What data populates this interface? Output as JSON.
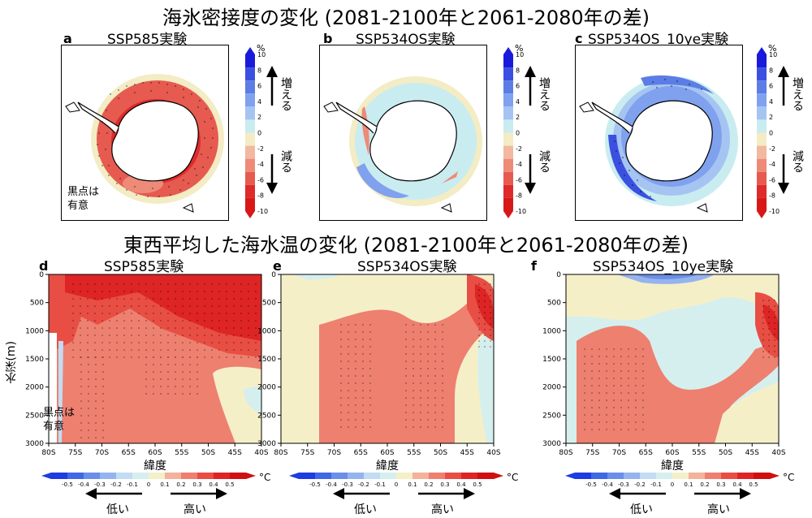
{
  "titles": {
    "top": "海氷密接度の変化 (2081-2100年と2061-2080年の差)",
    "bottom": "東西平均した海水温の変化 (2081-2100年と2061-2080年の差)"
  },
  "panels": {
    "a": {
      "label": "a",
      "title": "SSP585実験"
    },
    "b": {
      "label": "b",
      "title": "SSP534OS実験"
    },
    "c": {
      "label": "c",
      "title": "SSP534OS_10ye実験"
    },
    "d": {
      "label": "d",
      "title": "SSP585実験"
    },
    "e": {
      "label": "e",
      "title": "SSP534OS実験"
    },
    "f": {
      "label": "f",
      "title": "SSP534OS_10ye実験"
    }
  },
  "notes": {
    "significance_line1": "黒点は",
    "significance_line2": "有意"
  },
  "ice_colorbar": {
    "unit": "%",
    "ticks": [
      "10",
      "8",
      "6",
      "4",
      "2",
      "0",
      "-2",
      "-4",
      "-6",
      "-8",
      "-10"
    ],
    "up_label": "増える",
    "down_label": "減る",
    "colors": [
      "#1a1adc",
      "#3b50e0",
      "#5c7de6",
      "#7fa1ee",
      "#a5c4f2",
      "#c9ecf0",
      "#f3ecc4",
      "#f2b8a0",
      "#ee8a78",
      "#e65a50",
      "#de2a2a",
      "#d81818"
    ]
  },
  "temp_colorbar": {
    "unit": "°C",
    "ticks": [
      "-0.5",
      "-0.4",
      "-0.3",
      "-0.2",
      "-0.1",
      "0",
      "0.1",
      "0.2",
      "0.3",
      "0.4",
      "0.5"
    ],
    "low_label": "低い",
    "high_label": "高い",
    "colors": [
      "#1e3ce0",
      "#3f68e4",
      "#6a8fe8",
      "#95b4ee",
      "#c2dcf3",
      "#d5efee",
      "#f5efc8",
      "#f4b29a",
      "#ee8070",
      "#e84e44",
      "#de2424",
      "#d01010"
    ]
  },
  "depth_axis": {
    "label": "水深(m)",
    "ticks": [
      "0",
      "500",
      "1000",
      "1500",
      "2000",
      "2500",
      "3000"
    ]
  },
  "lat_axis": {
    "label": "緯度",
    "ticks": [
      "80S",
      "75S",
      "70S",
      "65S",
      "60S",
      "55S",
      "50S",
      "45S",
      "40S"
    ]
  },
  "chart_data": [
    {
      "type": "heatmap",
      "panel": "a",
      "title": "SSP585実験",
      "variable": "sea ice concentration change",
      "unit": "%",
      "clim": [
        -10,
        10
      ],
      "pattern": "decrease around entire Antarctic sea-ice edge, values -4 to -10, mostly significant"
    },
    {
      "type": "heatmap",
      "panel": "b",
      "title": "SSP534OS実験",
      "variable": "sea ice concentration change",
      "unit": "%",
      "clim": [
        -10,
        10
      ],
      "pattern": "weak increase 0 to 4 around Antarctica, local -2 to -6 near peninsula and Ross Sea"
    },
    {
      "type": "heatmap",
      "panel": "c",
      "title": "SSP534OS_10ye実験",
      "variable": "sea ice concentration change",
      "unit": "%",
      "clim": [
        -10,
        10
      ],
      "pattern": "increase 2 to 10 around Antarctica, strongest in Weddell Sea, significant"
    },
    {
      "type": "heatmap",
      "panel": "d",
      "title": "SSP585実験",
      "xlabel": "緯度",
      "ylabel": "水深(m)",
      "x_range": [
        "80S",
        "40S"
      ],
      "y_range": [
        0,
        3000
      ],
      "unit": "°C",
      "clim": [
        -0.5,
        0.5
      ],
      "pattern": "warming 0.1-0.2 everywhere, >0.4 in upper 1000 m north of 65S"
    },
    {
      "type": "heatmap",
      "panel": "e",
      "title": "SSP534OS実験",
      "xlabel": "緯度",
      "ylabel": "水深(m)",
      "x_range": [
        "80S",
        "40S"
      ],
      "y_range": [
        0,
        3000
      ],
      "unit": "°C",
      "clim": [
        -0.5,
        0.5
      ],
      "pattern": "warming 0.1-0.2 at depth, near zero in upper 500 m, peak 0.4-0.5 near 43S 500-800 m"
    },
    {
      "type": "heatmap",
      "panel": "f",
      "title": "SSP534OS_10ye実験",
      "xlabel": "緯度",
      "ylabel": "水深(m)",
      "x_range": [
        "80S",
        "40S"
      ],
      "y_range": [
        0,
        3000
      ],
      "unit": "°C",
      "clim": [
        -0.5,
        0.5
      ],
      "pattern": "cooling -0.1 to -0.3 near surface, warming 0.1-0.2 at depth, peak >0.4 near 42S 700 m"
    }
  ]
}
